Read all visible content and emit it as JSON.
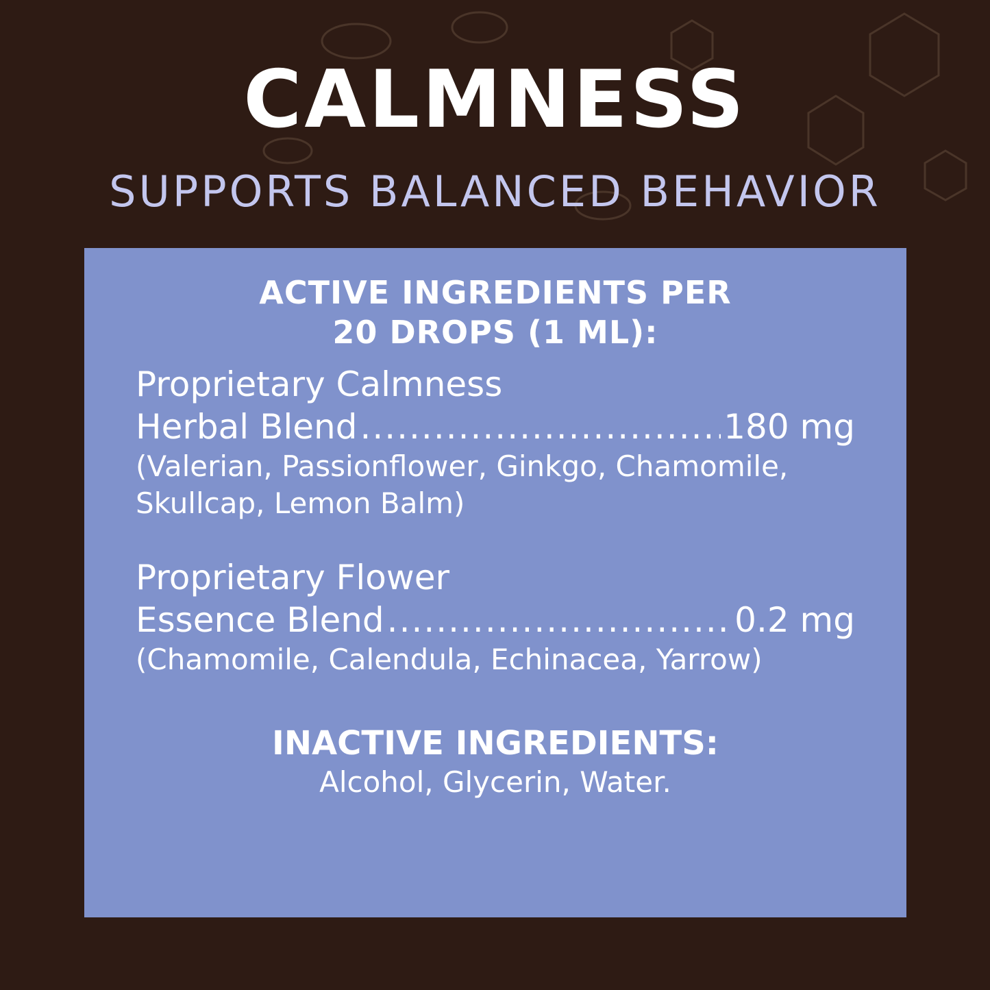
{
  "header": {
    "title": "CALMNESS",
    "subtitle": "SUPPORTS BALANCED BEHAVIOR"
  },
  "colors": {
    "background": "#2e1b14",
    "panel": "#8092cc",
    "subtitle": "#c3c6ee",
    "text": "#ffffff"
  },
  "active": {
    "heading_line1": "ACTIVE INGREDIENTS PER",
    "heading_line2": "20 DROPS (1 ML):",
    "blends": [
      {
        "name_line1": "Proprietary Calmness",
        "name_line2": "Herbal Blend",
        "amount": "180 mg",
        "ingredients_line1": "(Valerian, Passionflower, Ginkgo, Chamomile,",
        "ingredients_line2": "Skullcap, Lemon Balm)"
      },
      {
        "name_line1": "Proprietary Flower",
        "name_line2": "Essence Blend",
        "amount": "0.2 mg",
        "ingredients_line1": "(Chamomile, Calendula, Echinacea, Yarrow)"
      }
    ]
  },
  "inactive": {
    "heading": "INACTIVE INGREDIENTS:",
    "text": "Alcohol, Glycerin, Water."
  }
}
